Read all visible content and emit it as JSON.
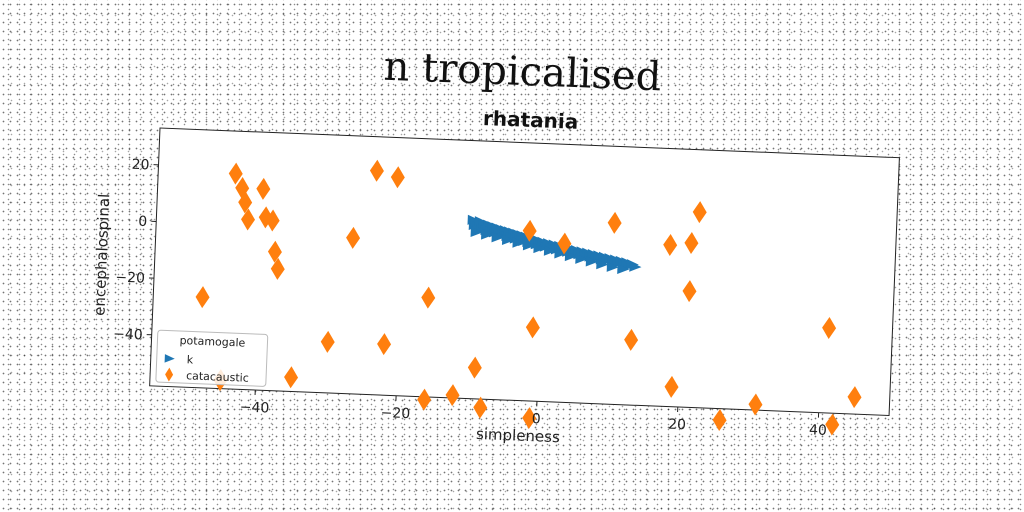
{
  "figure": {
    "suptitle": "n tropicalised"
  },
  "chart_data": {
    "type": "scatter",
    "title": "rhatania",
    "xlabel": "simpleness",
    "ylabel": "encephalospinal",
    "xlim": [
      -55,
      50
    ],
    "ylim": [
      -58,
      33
    ],
    "xticks": [
      -40,
      -20,
      0,
      20,
      40
    ],
    "yticks": [
      20,
      0,
      -20,
      -40
    ],
    "grid": false,
    "legend": {
      "title": "potamogale",
      "placement": "lower-left"
    },
    "series": [
      {
        "name": "k",
        "marker": "triangle-right",
        "color": "#1f77b4",
        "points": [
          [
            -10.0,
            5.0
          ],
          [
            -9.8,
            3.2
          ],
          [
            -9.6,
            4.1
          ],
          [
            -9.3,
            2.8
          ],
          [
            -9.0,
            4.6
          ],
          [
            -8.7,
            2.0
          ],
          [
            -8.4,
            3.9
          ],
          [
            -8.1,
            1.6
          ],
          [
            -7.8,
            3.5
          ],
          [
            -7.5,
            1.2
          ],
          [
            -7.2,
            3.0
          ],
          [
            -6.9,
            0.9
          ],
          [
            -6.6,
            2.6
          ],
          [
            -6.3,
            0.5
          ],
          [
            -6.0,
            2.1
          ],
          [
            -5.7,
            0.2
          ],
          [
            -5.4,
            1.8
          ],
          [
            -5.1,
            -0.2
          ],
          [
            -4.8,
            1.4
          ],
          [
            -4.5,
            -0.6
          ],
          [
            -4.2,
            1.0
          ],
          [
            -3.9,
            -1.0
          ],
          [
            -3.6,
            0.6
          ],
          [
            -3.3,
            -1.3
          ],
          [
            -3.0,
            0.2
          ],
          [
            -2.7,
            -1.7
          ],
          [
            -2.4,
            -0.2
          ],
          [
            -2.1,
            -2.0
          ],
          [
            -1.8,
            -0.6
          ],
          [
            -1.5,
            -2.4
          ],
          [
            -1.2,
            -1.0
          ],
          [
            -0.9,
            -2.7
          ],
          [
            -0.6,
            -1.4
          ],
          [
            -0.3,
            -3.1
          ],
          [
            0.0,
            -1.8
          ],
          [
            0.4,
            -3.4
          ],
          [
            0.8,
            -2.2
          ],
          [
            1.2,
            -3.8
          ],
          [
            1.6,
            -2.6
          ],
          [
            2.0,
            -4.2
          ],
          [
            2.4,
            -3.0
          ],
          [
            2.8,
            -4.5
          ],
          [
            3.2,
            -3.4
          ],
          [
            3.6,
            -4.9
          ],
          [
            4.0,
            -3.8
          ],
          [
            4.4,
            -5.2
          ],
          [
            4.8,
            -4.2
          ],
          [
            5.2,
            -5.6
          ],
          [
            5.6,
            -4.6
          ],
          [
            6.0,
            -6.0
          ],
          [
            6.4,
            -5.0
          ],
          [
            6.8,
            -6.3
          ],
          [
            7.2,
            -5.4
          ],
          [
            7.6,
            -6.7
          ],
          [
            8.0,
            -5.8
          ],
          [
            8.4,
            -7.1
          ],
          [
            8.8,
            -6.2
          ],
          [
            9.2,
            -7.4
          ],
          [
            9.6,
            -6.6
          ],
          [
            10.0,
            -7.8
          ],
          [
            10.4,
            -7.0
          ],
          [
            10.8,
            -8.1
          ],
          [
            11.2,
            -7.4
          ],
          [
            11.6,
            -8.5
          ],
          [
            12.0,
            -7.8
          ],
          [
            12.4,
            -8.9
          ],
          [
            12.8,
            -8.4
          ],
          [
            13.2,
            -9.2
          ],
          [
            -9.5,
            0.8
          ],
          [
            -8.0,
            0.0
          ],
          [
            -6.5,
            -0.8
          ],
          [
            -5.0,
            -1.6
          ],
          [
            -3.5,
            -2.4
          ],
          [
            -2.0,
            -3.2
          ],
          [
            -0.5,
            -4.0
          ],
          [
            1.0,
            -4.8
          ],
          [
            2.5,
            -5.6
          ],
          [
            4.0,
            -6.4
          ],
          [
            5.5,
            -7.2
          ],
          [
            7.0,
            -8.0
          ],
          [
            8.5,
            -8.8
          ],
          [
            10.0,
            -9.6
          ],
          [
            11.5,
            -10.2
          ]
        ]
      },
      {
        "name": "catacaustic",
        "marker": "thin-diamond",
        "color": "#ff7f0e",
        "points": [
          [
            -48,
            -26
          ],
          [
            -44,
            18
          ],
          [
            -43,
            13
          ],
          [
            -42.5,
            8
          ],
          [
            -42,
            2
          ],
          [
            -45,
            -55
          ],
          [
            -40,
            13
          ],
          [
            -39.5,
            3
          ],
          [
            -38.5,
            2
          ],
          [
            -38,
            -9
          ],
          [
            -37.5,
            -15
          ],
          [
            -35,
            -53
          ],
          [
            -30,
            -40
          ],
          [
            -27,
            -3
          ],
          [
            -24,
            21
          ],
          [
            -22,
            -40
          ],
          [
            -21,
            19
          ],
          [
            -16,
            -23
          ],
          [
            -16,
            -59
          ],
          [
            -12,
            -57
          ],
          [
            -9,
            -47
          ],
          [
            -8,
            -61
          ],
          [
            -2,
            2
          ],
          [
            -1,
            -32
          ],
          [
            -1,
            -64
          ],
          [
            3,
            -2
          ],
          [
            10,
            6
          ],
          [
            13,
            -35
          ],
          [
            18,
            -1
          ],
          [
            19,
            -51
          ],
          [
            21,
            0
          ],
          [
            21,
            -17
          ],
          [
            22,
            11
          ],
          [
            26,
            -62
          ],
          [
            31,
            -56
          ],
          [
            41,
            -28
          ],
          [
            42,
            -62
          ],
          [
            45,
            -52
          ]
        ]
      }
    ]
  }
}
